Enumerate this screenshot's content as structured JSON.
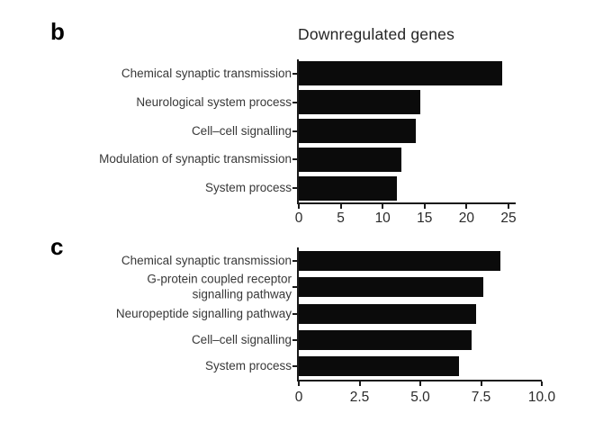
{
  "figure": {
    "background": "#ffffff",
    "bar_color": "#0b0b0b",
    "axis_color": "#1a1a1a",
    "label_color": "#383838",
    "title_color": "#242424"
  },
  "chart_data": [
    {
      "type": "bar",
      "orientation": "horizontal",
      "panel_letter": "b",
      "title": "Downregulated genes",
      "categories": [
        "Chemical synaptic transmission",
        "Neurological system process",
        "Cell–cell signalling",
        "Modulation of synaptic transmission",
        "System process"
      ],
      "values": [
        24.2,
        14.5,
        14.0,
        12.2,
        11.7
      ],
      "xlabel": "",
      "ylabel": "",
      "xlim": [
        0,
        25
      ],
      "xticks": [
        0,
        5,
        10,
        15,
        20,
        25
      ],
      "xtick_labels": [
        "0",
        "5",
        "10",
        "15",
        "20",
        "25"
      ],
      "grid": false,
      "legend": "none"
    },
    {
      "type": "bar",
      "orientation": "horizontal",
      "panel_letter": "c",
      "title": "",
      "categories": [
        "Chemical synaptic transmission",
        "G-protein coupled receptor\nsignalling pathway",
        "Neuropeptide signalling pathway",
        "Cell–cell signalling",
        "System process"
      ],
      "values": [
        8.3,
        7.6,
        7.3,
        7.1,
        6.6
      ],
      "xlabel": "",
      "ylabel": "",
      "xlim": [
        0,
        10
      ],
      "xticks": [
        0,
        2.5,
        5,
        7.5,
        10
      ],
      "xtick_labels": [
        "0",
        "2.5",
        "5.0",
        "7.5",
        "10.0"
      ],
      "grid": false,
      "legend": "none"
    }
  ]
}
